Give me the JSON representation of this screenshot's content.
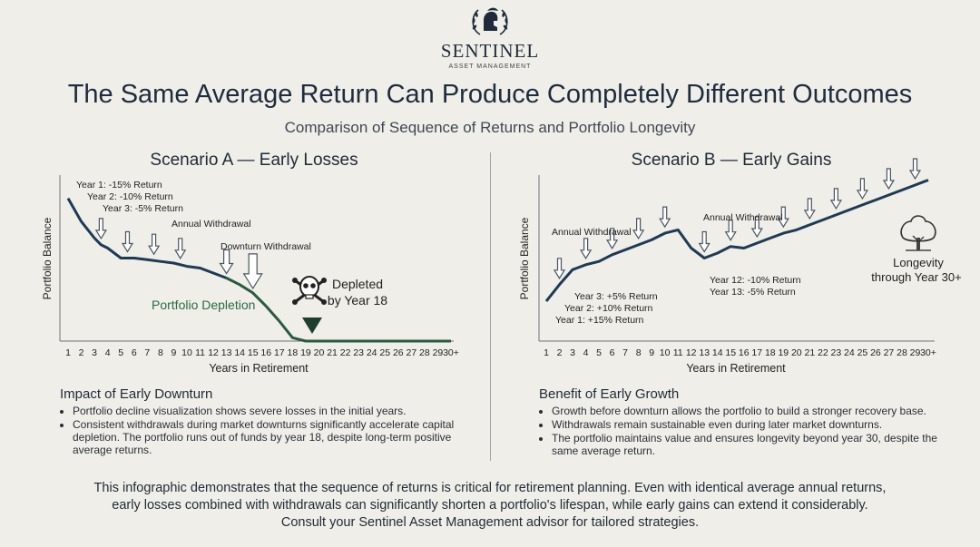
{
  "brand": {
    "name": "SENTINEL",
    "tagline": "ASSET MANAGEMENT"
  },
  "header": {
    "title": "The Same Average Return Can Produce Completely Different Outcomes",
    "subtitle": "Comparison of Sequence of Returns and Portfolio Longevity"
  },
  "colors": {
    "line": "#1e3a55",
    "depletion": "#2b5a3e",
    "accent_text": "#2b6a45",
    "background": "#efeee9"
  },
  "chart_data": [
    {
      "type": "line",
      "title": "Scenario A — Early Losses",
      "xlabel": "Years in Retirement",
      "ylabel": "Portfolio Balance",
      "x_ticks": [
        "1",
        "2",
        "3",
        "4",
        "5",
        "6",
        "7",
        "8",
        "9",
        "10",
        "11",
        "12",
        "13",
        "14",
        "15",
        "16",
        "17",
        "18",
        "19",
        "20",
        "21",
        "22",
        "23",
        "24",
        "25",
        "26",
        "27",
        "28",
        "29",
        "30+"
      ],
      "ylim": [
        0,
        100
      ],
      "series": [
        {
          "values": [
            [
              1,
              86
            ],
            [
              2,
              72
            ],
            [
              3,
              62
            ],
            [
              3.5,
              58
            ],
            [
              4,
              56
            ],
            [
              5,
              50
            ],
            [
              6,
              50
            ],
            [
              7,
              49
            ],
            [
              8,
              48
            ],
            [
              9,
              47
            ],
            [
              10,
              45
            ],
            [
              11,
              44
            ],
            [
              12,
              41
            ],
            [
              13,
              38
            ],
            [
              14,
              34
            ],
            [
              15,
              29
            ],
            [
              16,
              21
            ],
            [
              17,
              12
            ],
            [
              18,
              2
            ],
            [
              19,
              0
            ],
            [
              30,
              0
            ]
          ]
        }
      ],
      "withdrawal_arrows": [
        3.5,
        5.5,
        7.5,
        9.5,
        13,
        15
      ],
      "annotations": {
        "year1": "Year 1: -15% Return",
        "year2": "Year 2: -10% Return",
        "year3": "Year 3: -5% Return",
        "annual_withdrawal": "Annual Withdrawal",
        "downturn_withdrawal": "Downturn Withdrawal",
        "depletion": "Portfolio Depletion",
        "depleted_line1": "Depleted",
        "depleted_line2": "by Year 18"
      }
    },
    {
      "type": "line",
      "title": "Scenario B — Early Gains",
      "xlabel": "Years in Retirement",
      "ylabel": "Portfolio Balance",
      "x_ticks": [
        "1",
        "2",
        "3",
        "4",
        "5",
        "6",
        "7",
        "8",
        "9",
        "10",
        "11",
        "12",
        "13",
        "14",
        "15",
        "16",
        "17",
        "18",
        "19",
        "20",
        "21",
        "22",
        "23",
        "24",
        "25",
        "26",
        "27",
        "28",
        "29",
        "30+"
      ],
      "ylim": [
        0,
        100
      ],
      "series": [
        {
          "values": [
            [
              1,
              24
            ],
            [
              2,
              34
            ],
            [
              3,
              43
            ],
            [
              4,
              46
            ],
            [
              5,
              48
            ],
            [
              6,
              52
            ],
            [
              7,
              55
            ],
            [
              8,
              58
            ],
            [
              9,
              61
            ],
            [
              10,
              65
            ],
            [
              11,
              67
            ],
            [
              12,
              56
            ],
            [
              13,
              50
            ],
            [
              14,
              53
            ],
            [
              15,
              57
            ],
            [
              16,
              56
            ],
            [
              17,
              59
            ],
            [
              18,
              62
            ],
            [
              19,
              65
            ],
            [
              20,
              67
            ],
            [
              21,
              70
            ],
            [
              22,
              73
            ],
            [
              23,
              76
            ],
            [
              24,
              79
            ],
            [
              25,
              82
            ],
            [
              26,
              85
            ],
            [
              27,
              88
            ],
            [
              28,
              91
            ],
            [
              29,
              94
            ],
            [
              30,
              97
            ]
          ]
        }
      ],
      "withdrawal_arrows": [
        2,
        4,
        6,
        8,
        10,
        13,
        15,
        17,
        19,
        21,
        23,
        25,
        27,
        29
      ],
      "annotations": {
        "year1": "Year 1: +15% Return",
        "year2": "Year 2: +10% Return",
        "year3": "Year 3: +5% Return",
        "annual_withdrawal_left": "Annual Withdrawal",
        "annual_withdrawal_right": "Annual Withdrawal",
        "year12": "Year 12: -10% Return",
        "year13": "Year 13: -5% Return",
        "longevity_line1": "Longevity",
        "longevity_line2": "through Year 30+"
      }
    }
  ],
  "left_section": {
    "heading": "Impact of Early Downturn",
    "bullets": [
      "Portfolio decline visualization shows severe losses in the initial years.",
      "Consistent withdrawals during market downturns significantly accelerate capital depletion. The portfolio runs out of funds by year 18, despite long-term positive average returns."
    ]
  },
  "right_section": {
    "heading": "Benefit of Early Growth",
    "bullets": [
      "Growth before downturn allows the portfolio to build a stronger recovery base.",
      "Withdrawals remain sustainable even during later market downturns.",
      "The portfolio maintains value and ensures longevity beyond year 30, despite the same average return."
    ]
  },
  "footer": {
    "line1": "This infographic demonstrates that the sequence of returns is critical for retirement planning. Even with identical average annual returns,",
    "line2": "early losses combined with withdrawals can significantly shorten a portfolio's lifespan, while early gains can extend it considerably.",
    "line3": "Consult your Sentinel Asset Management advisor for tailored strategies."
  }
}
